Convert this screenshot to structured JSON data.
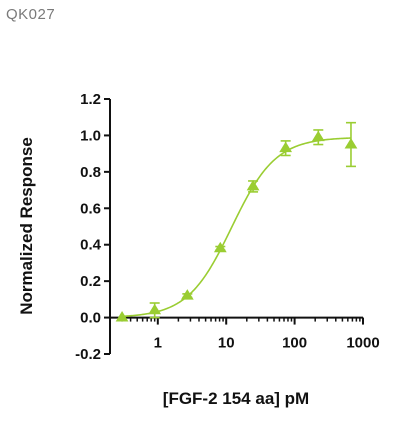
{
  "header": {
    "product_code": "QK027"
  },
  "chart_data": {
    "type": "scatter",
    "title": "",
    "xlabel": "[FGF-2 154 aa] pM",
    "ylabel": "Normalized Response",
    "x_scale": "log",
    "xlim": [
      0.2,
      1000
    ],
    "ylim": [
      -0.2,
      1.2
    ],
    "x_ticks": [
      1,
      10,
      100,
      1000
    ],
    "x_tick_labels": [
      "1",
      "10",
      "100",
      "1000"
    ],
    "y_ticks": [
      -0.2,
      0.0,
      0.2,
      0.4,
      0.6,
      0.8,
      1.0,
      1.2
    ],
    "y_tick_labels": [
      "-0.2",
      "0.0",
      "0.2",
      "0.4",
      "0.6",
      "0.8",
      "1.0",
      "1.2"
    ],
    "grid": false,
    "color": "#9ACD32",
    "series": [
      {
        "x": [
          0.3,
          0.9,
          2.7,
          8.2,
          24.7,
          74,
          222,
          667
        ],
        "y": [
          0.0,
          0.04,
          0.12,
          0.38,
          0.72,
          0.93,
          0.99,
          0.95
        ],
        "error": [
          0.0,
          0.04,
          0.01,
          0.01,
          0.03,
          0.04,
          0.04,
          0.12
        ]
      }
    ],
    "fit_curve": {
      "model": "4PL",
      "bottom": 0.0,
      "top": 0.99,
      "ec50": 12,
      "hill": 1.35
    }
  }
}
